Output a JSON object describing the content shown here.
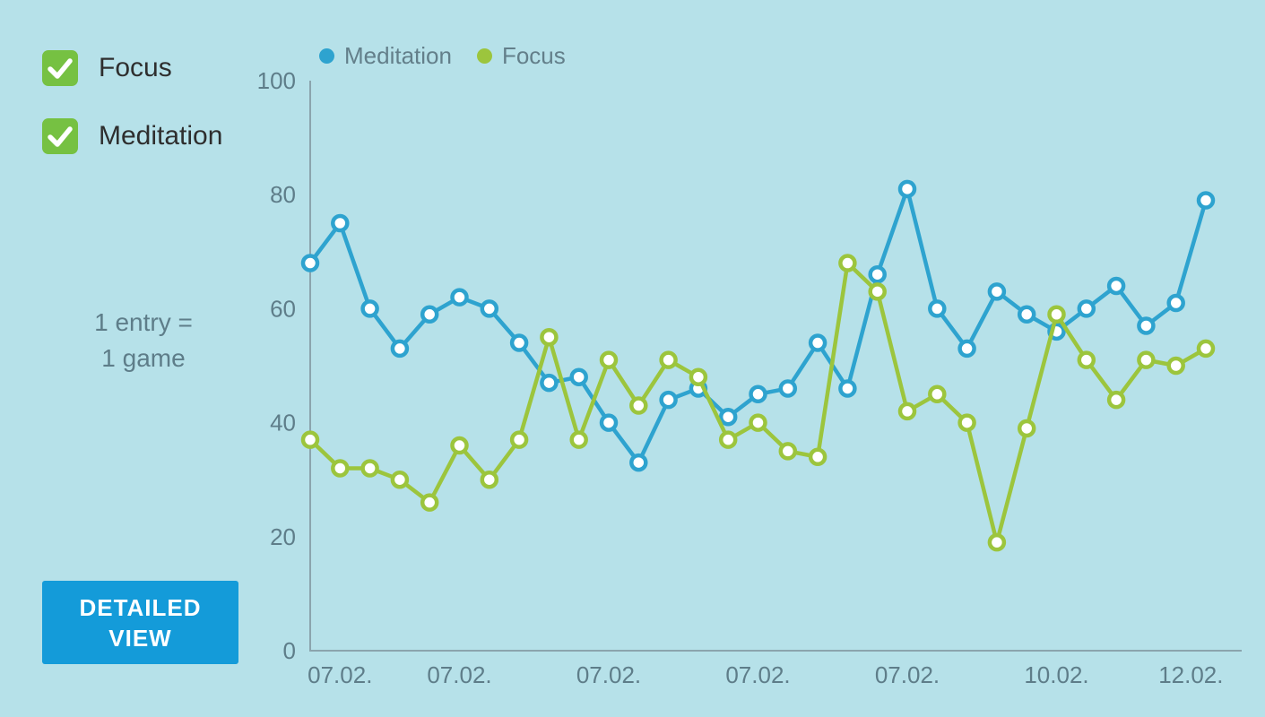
{
  "colors": {
    "background": "#b6e1e9",
    "meditation_line": "#2ea3cf",
    "focus_line": "#9cc53d",
    "checkbox_green": "#76c142",
    "button_blue": "#149bd9",
    "axis": "#8ba4ad",
    "axis_text": "#5e7d89",
    "marker_fill": "#ffffff"
  },
  "sidebar": {
    "checkboxes": [
      {
        "label": "Focus",
        "checked": true
      },
      {
        "label": "Meditation",
        "checked": true
      }
    ],
    "note_line1": "1 entry =",
    "note_line2": "1 game",
    "button": {
      "line1": "DETAILED",
      "line2": "VIEW"
    }
  },
  "chart_data": {
    "type": "line",
    "title": "",
    "xlabel": "",
    "ylabel": "",
    "ylim": [
      0,
      100
    ],
    "yticks": [
      0,
      20,
      40,
      60,
      80,
      100
    ],
    "grid": false,
    "legend_position": "top-left",
    "x_tick_labels": [
      {
        "index": 1,
        "label": "07.02."
      },
      {
        "index": 5,
        "label": "07.02."
      },
      {
        "index": 10,
        "label": "07.02."
      },
      {
        "index": 15,
        "label": "07.02."
      },
      {
        "index": 20,
        "label": "07.02."
      },
      {
        "index": 25,
        "label": "10.02."
      },
      {
        "index": 29.5,
        "label": "12.02."
      }
    ],
    "legend": [
      {
        "label": "Meditation",
        "color": "#2ea3cf"
      },
      {
        "label": "Focus",
        "color": "#9cc53d"
      }
    ],
    "series": [
      {
        "name": "Meditation",
        "color": "#2ea3cf",
        "values": [
          68,
          75,
          60,
          53,
          59,
          62,
          60,
          54,
          47,
          48,
          40,
          33,
          44,
          46,
          41,
          45,
          46,
          54,
          46,
          66,
          81,
          60,
          53,
          63,
          59,
          56,
          60,
          64,
          57,
          61,
          79
        ]
      },
      {
        "name": "Focus",
        "color": "#9cc53d",
        "values": [
          37,
          32,
          32,
          30,
          26,
          36,
          30,
          37,
          55,
          37,
          51,
          43,
          51,
          48,
          37,
          40,
          35,
          34,
          68,
          63,
          42,
          45,
          40,
          19,
          39,
          59,
          51,
          44,
          51,
          50,
          53
        ]
      }
    ]
  }
}
